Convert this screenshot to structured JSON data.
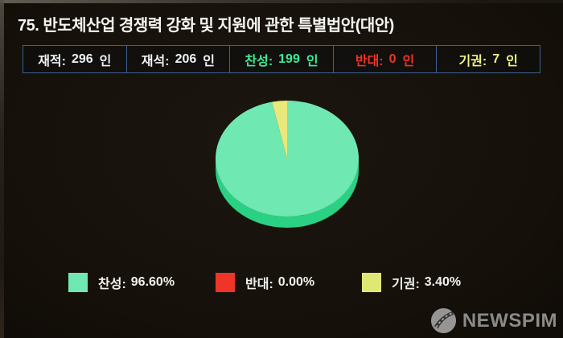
{
  "title": "75. 반도체산업 경쟁력 강화 및 지원에 관한 특별법안(대안)",
  "stats": [
    {
      "label": "재적:",
      "value": "296",
      "unit": "인",
      "color": "#eef2f4"
    },
    {
      "label": "재석:",
      "value": "206",
      "unit": "인",
      "color": "#eef2f4"
    },
    {
      "label": "찬성:",
      "value": "199",
      "unit": "인",
      "color": "#3deb94"
    },
    {
      "label": "반대:",
      "value": "0",
      "unit": "인",
      "color": "#f13426"
    },
    {
      "label": "기권:",
      "value": "7",
      "unit": "인",
      "color": "#edf282"
    }
  ],
  "chart_data": {
    "type": "pie",
    "style": "3d-pie",
    "title": "75. 반도체산업 경쟁력 강화 및 지원에 관한 특별법안(대안)",
    "categories": [
      "찬성",
      "반대",
      "기권"
    ],
    "values": [
      96.6,
      0.0,
      3.4
    ],
    "counts": [
      199,
      0,
      7
    ],
    "total_members": 296,
    "members_present": 206,
    "colors": [
      "#6fe8b2",
      "#ee3527",
      "#e8e87c"
    ],
    "side_color": "#2bd183",
    "start_angle_deg": 0,
    "direction": "clockwise",
    "legend_position": "bottom"
  },
  "legend": [
    {
      "label": "찬성:",
      "pct": "96.60%",
      "color": "#6fe8b2"
    },
    {
      "label": "반대:",
      "pct": "0.00%",
      "color": "#ee3527"
    },
    {
      "label": "기권:",
      "pct": "3.40%",
      "color": "#e0e873"
    }
  ],
  "ui_colors": {
    "background": "#16110d",
    "box_border": "#3b6290",
    "title_text": "#f4f4f1",
    "legend_text": "#f1f2ef",
    "watermark_gray": "#a6a6a6"
  },
  "watermark": {
    "text": "NEWSPIM"
  }
}
